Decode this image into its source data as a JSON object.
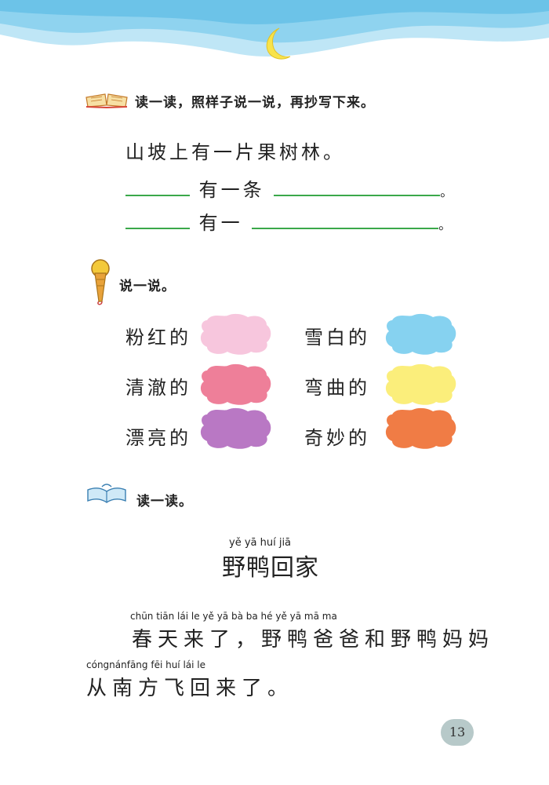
{
  "section1": {
    "instruction": "读一读，照样子说一说，再抄写下来。",
    "example": "山坡上有一片果树林。",
    "line2_mid": "有一条",
    "line3_mid": "有一",
    "period": "。"
  },
  "section2": {
    "instruction": "说一说。",
    "items": [
      {
        "label": "粉红的",
        "color": "#f7c6dd"
      },
      {
        "label": "雪白的",
        "color": "#86d2f0"
      },
      {
        "label": "清澈的",
        "color": "#ee7f99"
      },
      {
        "label": "弯曲的",
        "color": "#fbee7b"
      },
      {
        "label": "漂亮的",
        "color": "#b978c4"
      },
      {
        "label": "奇妙的",
        "color": "#f07c45"
      }
    ]
  },
  "section3": {
    "instruction": "读一读。",
    "title_pinyin": "yě  yā  huí  jiā",
    "title": "野鸭回家",
    "line1_pinyin": "chūn tiān  lái   le        yě   yā   bà   ba   hé   yě   yā  mā  ma",
    "line1": "春天来了，野鸭爸爸和野鸭妈妈",
    "line2_pinyin": "cóngnánfāng fēi  huí  lái   le",
    "line2": "从南方飞回来了。"
  },
  "page_number": "13"
}
